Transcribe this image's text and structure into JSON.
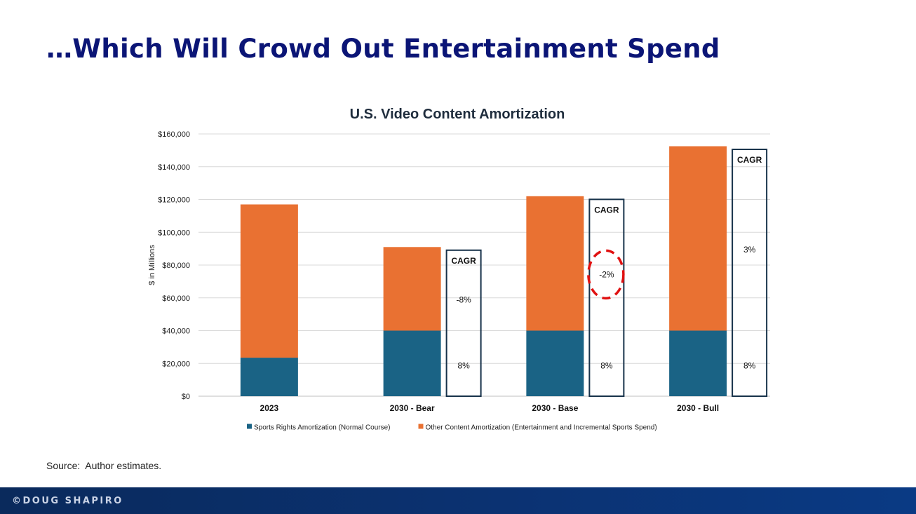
{
  "slide": {
    "title": "…Which Will Crowd Out Entertainment Spend",
    "source": "Source:  Author estimates.",
    "footer": "©DOUG SHAPIRO"
  },
  "chart_data": {
    "type": "bar",
    "stacked": true,
    "title": "U.S. Video Content Amortization",
    "xlabel": "",
    "ylabel": "$ in Millions",
    "ylim": [
      0,
      160000
    ],
    "yticks": [
      0,
      20000,
      40000,
      60000,
      80000,
      100000,
      120000,
      140000,
      160000
    ],
    "ytick_labels": [
      "$0",
      "$20,000",
      "$40,000",
      "$60,000",
      "$80,000",
      "$100,000",
      "$120,000",
      "$140,000",
      "$160,000"
    ],
    "grid": true,
    "legend_position": "bottom",
    "categories": [
      "2023",
      "2030 - Bear",
      "2030 - Base",
      "2030 - Bull"
    ],
    "series": [
      {
        "name": "Sports Rights Amortization (Normal Course)",
        "color": "#1a6385",
        "values": [
          23500,
          40000,
          40000,
          40000
        ]
      },
      {
        "name": "Other Content Amortization (Entertainment and Incremental Sports Spend)",
        "color": "#e97132",
        "values": [
          93500,
          51000,
          82000,
          112500
        ]
      }
    ],
    "annotations": [
      {
        "category": "2030 - Bear",
        "header": "CAGR",
        "other": "-8%",
        "sports": "8%",
        "highlight": false
      },
      {
        "category": "2030 - Base",
        "header": "CAGR",
        "other": "-2%",
        "sports": "8%",
        "highlight": true
      },
      {
        "category": "2030 - Bull",
        "header": "CAGR",
        "other": "3%",
        "sports": "8%",
        "highlight": false
      }
    ]
  }
}
